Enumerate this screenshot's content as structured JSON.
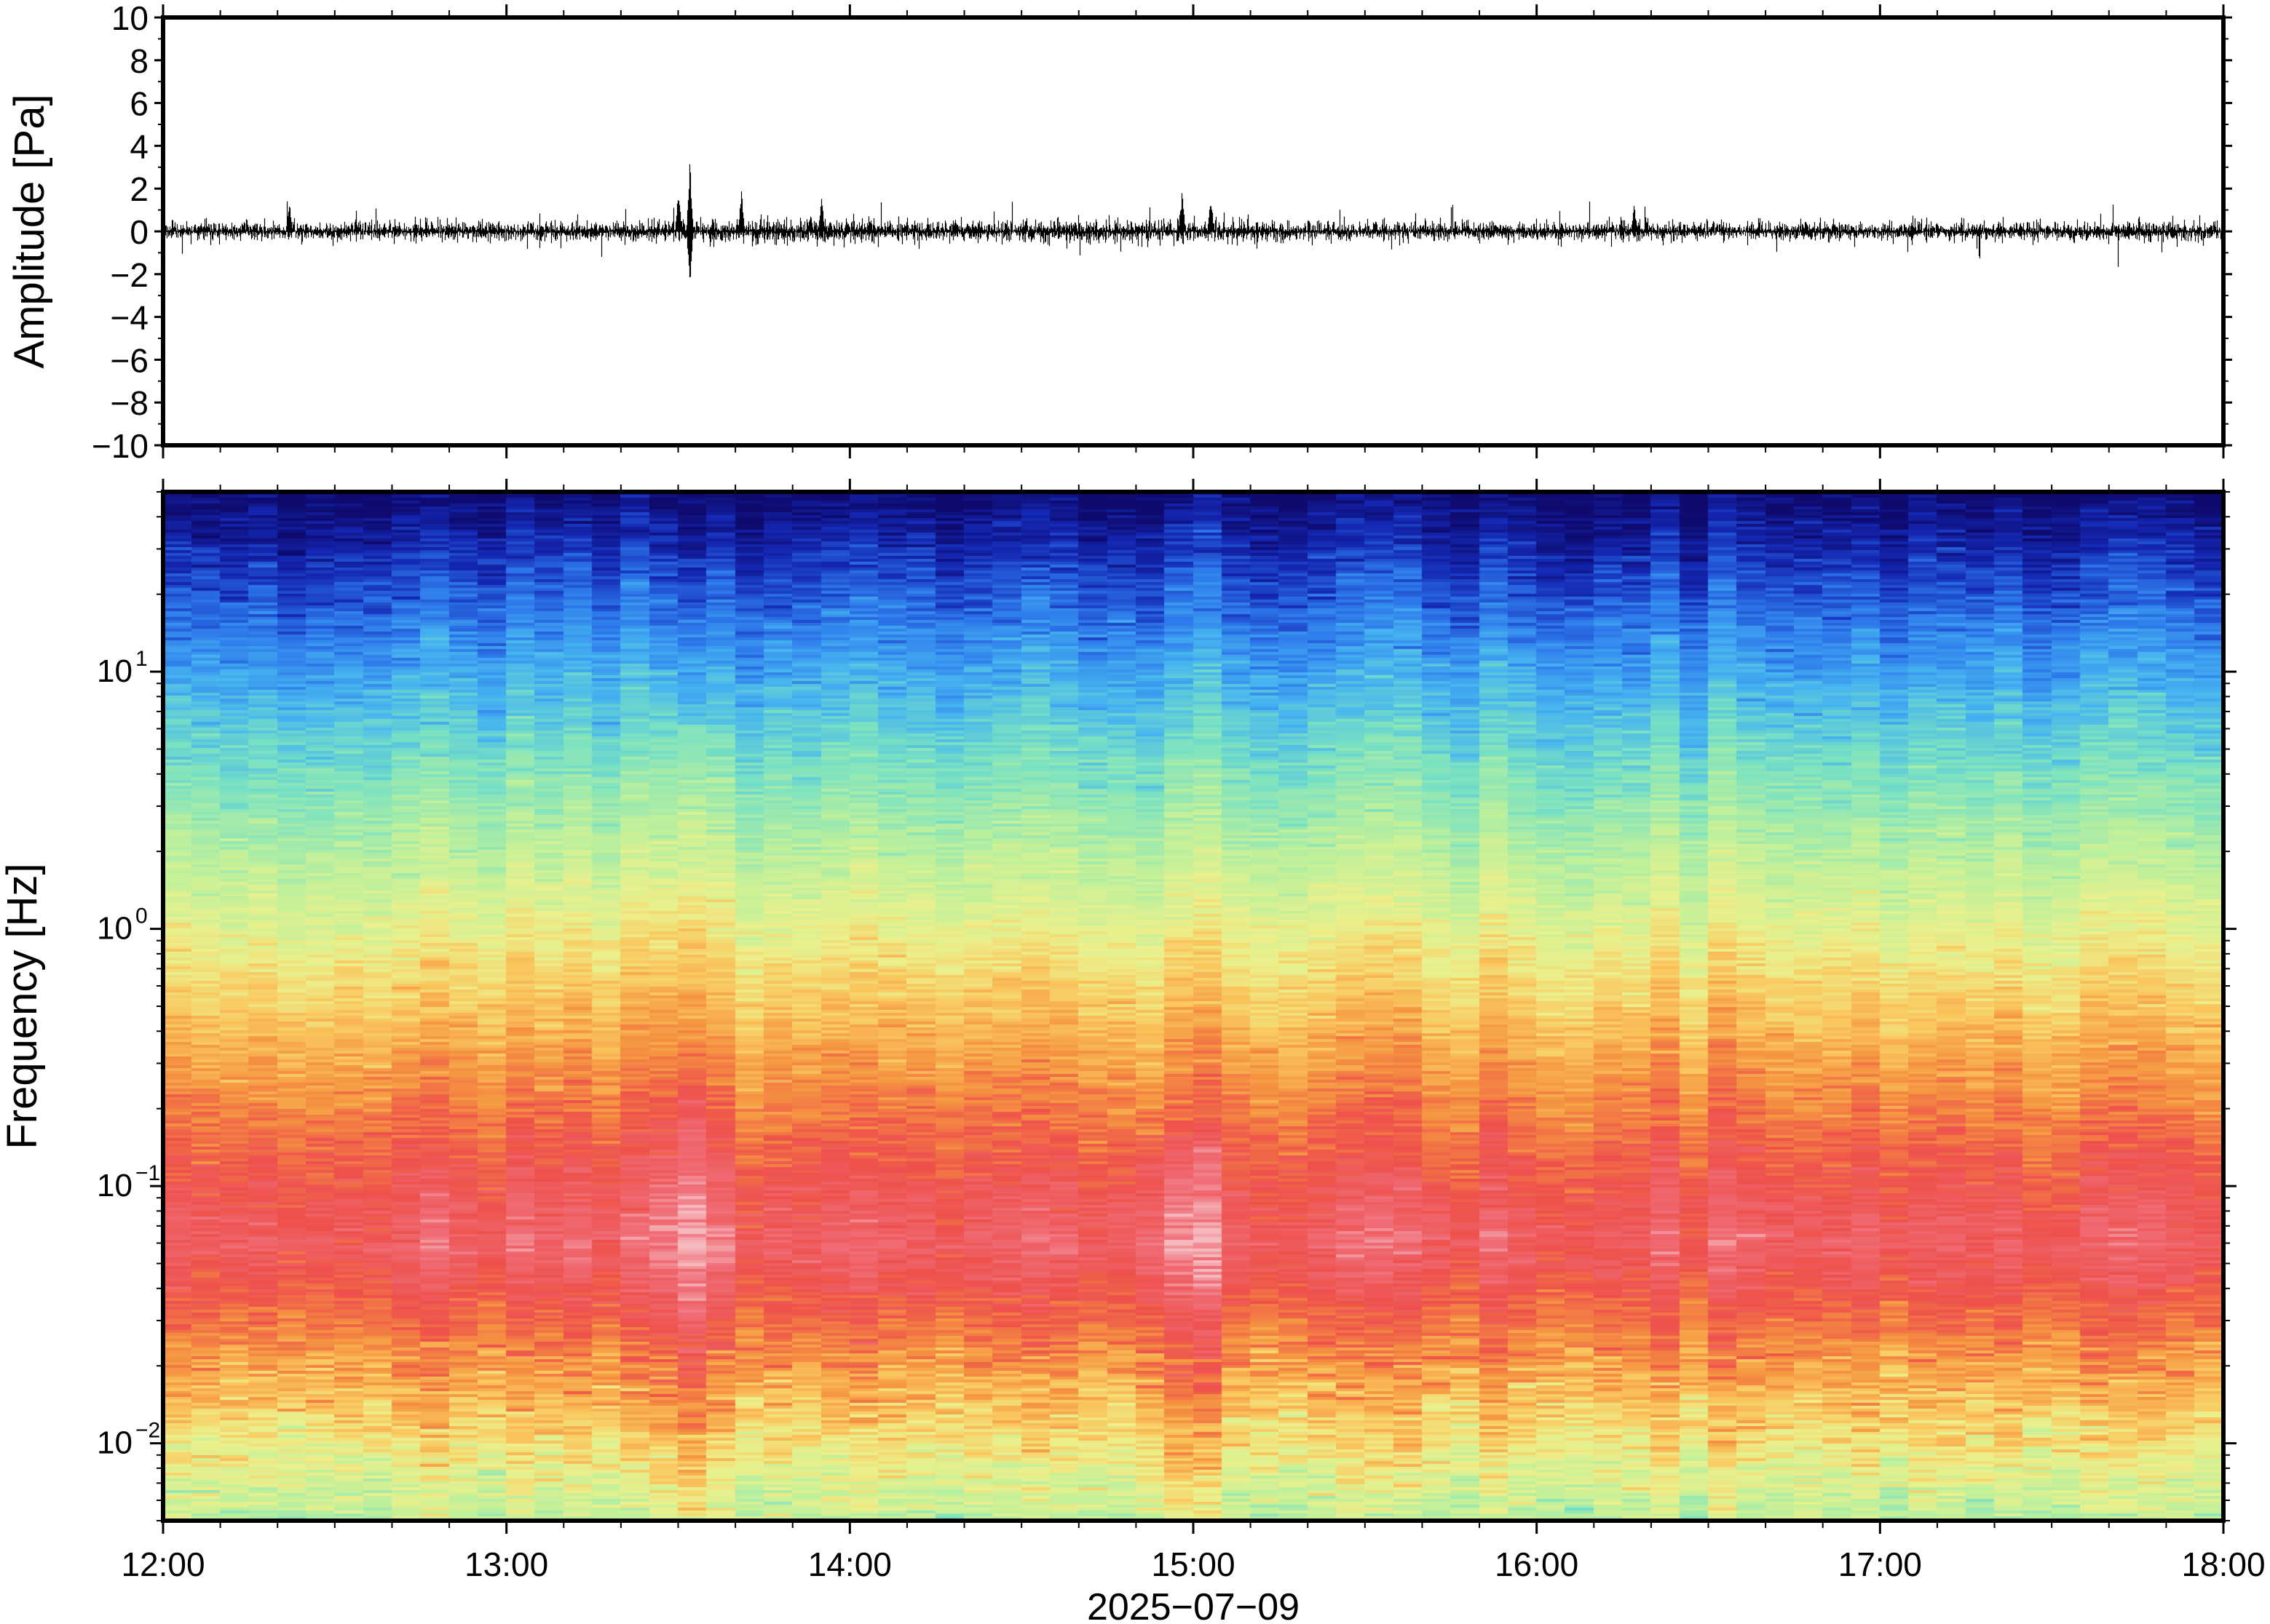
{
  "chart_data": [
    {
      "type": "line",
      "panel": "waveform",
      "ylabel": "Amplitude [Pa]",
      "ylim": [
        -10,
        10
      ],
      "yticks": [
        {
          "v": 10,
          "label": "10"
        },
        {
          "v": 8,
          "label": "8"
        },
        {
          "v": 6,
          "label": "6"
        },
        {
          "v": 4,
          "label": "4"
        },
        {
          "v": 2,
          "label": "2"
        },
        {
          "v": 0,
          "label": "0"
        },
        {
          "v": -2,
          "label": "−2"
        },
        {
          "v": -4,
          "label": "−4"
        },
        {
          "v": -6,
          "label": "−6"
        },
        {
          "v": -8,
          "label": "−8"
        },
        {
          "v": -10,
          "label": "−10"
        }
      ],
      "x_range_hours": [
        12,
        18
      ],
      "baseline": 0,
      "typical_peak_amplitude": 1.0,
      "events": [
        {
          "time": "12:22",
          "peak": 1.5
        },
        {
          "time": "13:30",
          "peak": 2.0
        },
        {
          "time": "13:32",
          "peak": 3.4,
          "min": -2.6
        },
        {
          "time": "13:41",
          "peak": 2.0
        },
        {
          "time": "13:55",
          "peak": 1.7
        },
        {
          "time": "14:58",
          "peak": 1.9
        },
        {
          "time": "15:03",
          "peak": 1.8
        },
        {
          "time": "16:17",
          "peak": 1.3
        }
      ]
    },
    {
      "type": "heatmap",
      "panel": "spectrogram",
      "ylabel": "Frequency [Hz]",
      "yscale": "log",
      "ylim": [
        0.005,
        50
      ],
      "yticks": [
        {
          "v": 0.01,
          "base": "10",
          "exp": "−2"
        },
        {
          "v": 0.1,
          "base": "10",
          "exp": "−1"
        },
        {
          "v": 1,
          "base": "10",
          "exp": "0"
        },
        {
          "v": 10,
          "base": "10",
          "exp": "1"
        }
      ],
      "colormap": "rainbow (blue = low power, red/pink = high power)",
      "colors": {
        "low": "#0a0a6e",
        "mid_low": "#3aa8f0",
        "mid": "#c8f08c",
        "mid_high": "#f5a340",
        "high": "#ee4a4a",
        "peak": "#f4b4b8"
      },
      "notes": {
        "high_power_band_hz": [
          0.03,
          0.2
        ],
        "strongest_patch": {
          "time": "13:32",
          "freq_hz": 0.04
        }
      }
    }
  ],
  "x_axis": {
    "ticks": [
      "12:00",
      "13:00",
      "14:00",
      "15:00",
      "16:00",
      "17:00",
      "18:00"
    ],
    "date_label": "2025−07−09"
  }
}
